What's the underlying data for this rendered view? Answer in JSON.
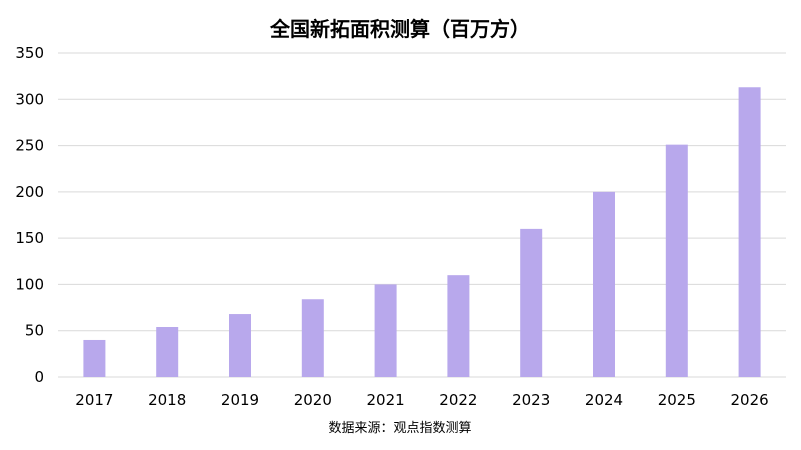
{
  "chart_data": {
    "type": "bar",
    "title": "全国新拓面积测算（百万方）",
    "categories": [
      "2017",
      "2018",
      "2019",
      "2020",
      "2021",
      "2022",
      "2023",
      "2024",
      "2025",
      "2026"
    ],
    "values": [
      40,
      54,
      68,
      84,
      100,
      110,
      160,
      200,
      251,
      313
    ],
    "ylim": [
      0,
      350
    ],
    "yticks": [
      0,
      50,
      100,
      150,
      200,
      250,
      300,
      350
    ],
    "xlabel": "",
    "ylabel": "",
    "grid": true,
    "legend": "none",
    "source": "数据来源：观点指数测算"
  },
  "colors": {
    "bar": "#b8a8ec",
    "grid": "#d9d9d9",
    "text": "#000000"
  }
}
